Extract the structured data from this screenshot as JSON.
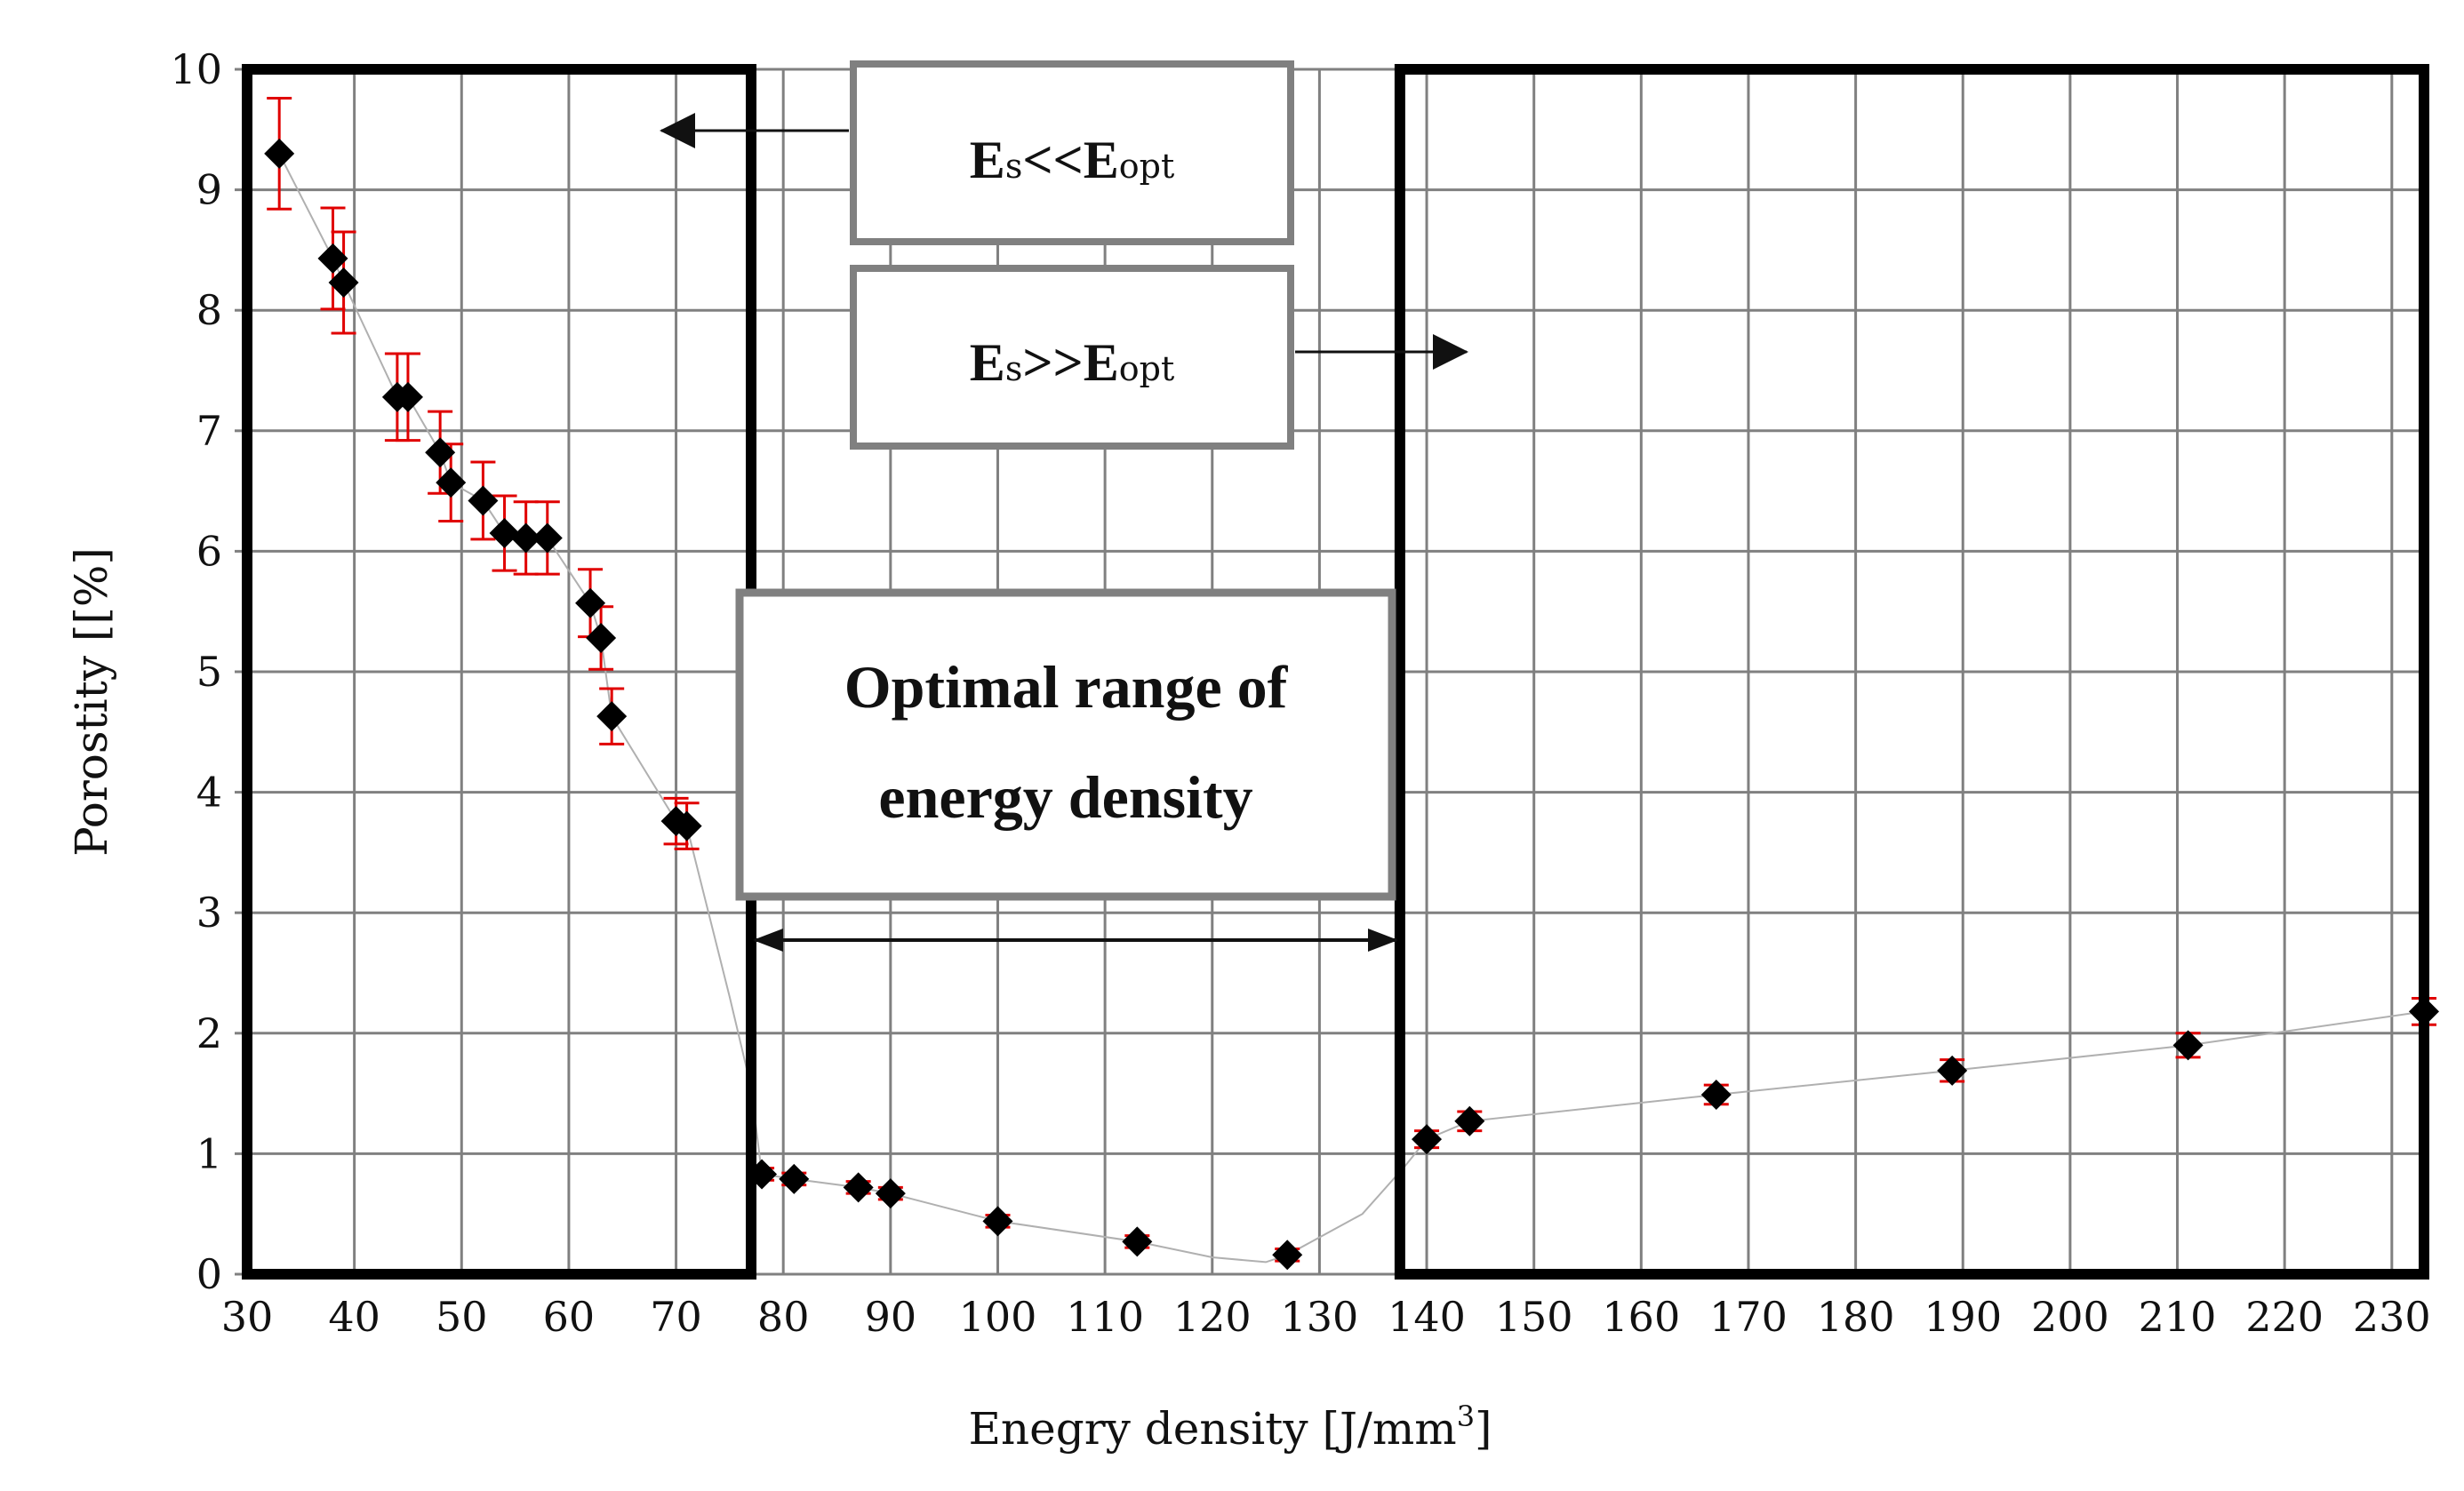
{
  "chart_data": {
    "type": "scatter",
    "title": "",
    "xlabel": "Enegry density [J/mm",
    "xlabel_sup": "3",
    "xlabel_suffix": "]",
    "ylabel": "Porostity [[%]",
    "xlim": [
      30,
      233
    ],
    "ylim": [
      0,
      10
    ],
    "grid": true,
    "x_ticks": [
      30,
      40,
      50,
      60,
      70,
      80,
      90,
      100,
      110,
      120,
      130,
      140,
      150,
      160,
      170,
      180,
      190,
      200,
      210,
      220,
      230
    ],
    "y_ticks": [
      0,
      1,
      2,
      3,
      4,
      5,
      6,
      7,
      8,
      9,
      10
    ],
    "marker_color": "#000000",
    "error_bar_color": "#e00000",
    "series": [
      {
        "x": [
          33,
          38,
          39,
          44,
          45,
          48,
          49,
          52,
          54,
          56,
          58,
          62,
          63,
          64,
          70,
          71,
          78,
          81,
          87,
          90,
          100,
          113,
          127,
          140,
          144,
          167,
          189,
          211,
          233
        ],
        "y": [
          9.3,
          8.43,
          8.23,
          7.28,
          7.28,
          6.82,
          6.57,
          6.42,
          6.15,
          6.11,
          6.11,
          5.57,
          5.28,
          4.63,
          3.76,
          3.72,
          0.83,
          0.79,
          0.72,
          0.67,
          0.44,
          0.27,
          0.16,
          1.12,
          1.27,
          1.49,
          1.69,
          1.9,
          2.18
        ],
        "error": [
          0.46,
          0.42,
          0.42,
          0.36,
          0.36,
          0.34,
          0.32,
          0.32,
          0.31,
          0.3,
          0.3,
          0.28,
          0.26,
          0.23,
          0.19,
          0.19,
          0.05,
          0.05,
          0.05,
          0.05,
          0.05,
          0.05,
          0.05,
          0.07,
          0.08,
          0.08,
          0.09,
          0.1,
          0.11
        ]
      }
    ],
    "trend_line": {
      "x": [
        33,
        38,
        39,
        44,
        45,
        48,
        49,
        52,
        54,
        56,
        58,
        62,
        63,
        64,
        70,
        71,
        75,
        77,
        78,
        81,
        87,
        90,
        100,
        113,
        120,
        125,
        127,
        134,
        138,
        140,
        144,
        167,
        189,
        211,
        233
      ],
      "y": [
        9.3,
        8.43,
        8.23,
        7.28,
        7.28,
        6.82,
        6.57,
        6.42,
        6.15,
        6.11,
        6.11,
        5.57,
        5.28,
        4.63,
        3.76,
        3.72,
        2.3,
        1.55,
        0.83,
        0.79,
        0.72,
        0.67,
        0.44,
        0.27,
        0.14,
        0.1,
        0.16,
        0.5,
        0.9,
        1.12,
        1.27,
        1.49,
        1.69,
        1.9,
        2.18
      ],
      "color": "#b0b0b0"
    },
    "annotations": [
      {
        "id": "low",
        "label": "E",
        "label_sub": "s",
        "label_mid": "<<E",
        "label_sub2": "opt",
        "region_x": [
          30,
          77
        ]
      },
      {
        "id": "high",
        "label": "E",
        "label_sub": "s",
        "label_mid": ">>E",
        "label_sub2": "opt",
        "region_x": [
          137.5,
          233
        ]
      },
      {
        "id": "optimal",
        "line1": "Optimal range of",
        "line2": "energy density",
        "range_x": [
          77,
          137.5
        ]
      }
    ]
  }
}
